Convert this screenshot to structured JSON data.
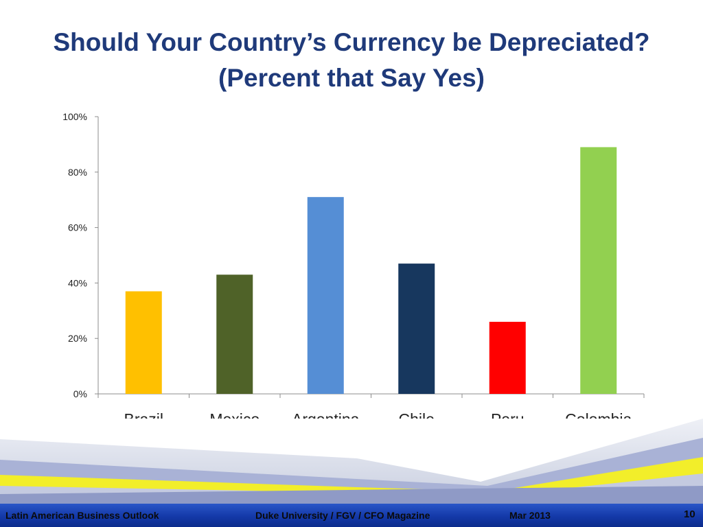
{
  "title": {
    "line1": "Should Your Country’s Currency be Depreciated?",
    "line2": "(Percent that Say Yes)"
  },
  "footer": {
    "left": "Latin American Business Outlook",
    "center": "Duke University / FGV / CFO Magazine",
    "date": "Mar 2013",
    "page": "10"
  },
  "chart_data": {
    "type": "bar",
    "title": "Should Your Country’s Currency be Depreciated? (Percent that Say Yes)",
    "xlabel": "",
    "ylabel": "",
    "categories": [
      "Brazil",
      "Mexico",
      "Argentina",
      "Chile",
      "Peru",
      "Colombia"
    ],
    "values": [
      37,
      43,
      71,
      47,
      26,
      89
    ],
    "colors": [
      "#FFC000",
      "#4F6228",
      "#558ED5",
      "#17375E",
      "#FF0000",
      "#92D050"
    ],
    "ylim": [
      0,
      100
    ],
    "yticks": [
      0,
      20,
      40,
      60,
      80,
      100
    ],
    "ytick_labels": [
      "0%",
      "20%",
      "40%",
      "60%",
      "80%",
      "100%"
    ],
    "grid": false,
    "legend": "none"
  }
}
